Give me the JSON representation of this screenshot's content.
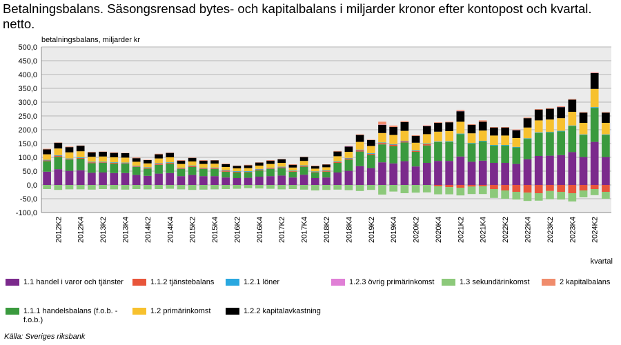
{
  "chart_data": {
    "type": "bar",
    "stacked": true,
    "title": "Betalningsbalans. Säsongsrensad bytes- och kapitalbalans i miljarder kronor efter kontopost och kvartal. netto.",
    "y_label": "betalningsbalans, miljarder kr",
    "x_label": "kvartal",
    "source": "Källa: Sveriges riksbank",
    "ylim": [
      -100,
      500
    ],
    "yticks": [
      {
        "value": -100,
        "label": "-100,0"
      },
      {
        "value": -50,
        "label": "-50,0"
      },
      {
        "value": 0,
        "label": "0,0"
      },
      {
        "value": 50,
        "label": "50,0"
      },
      {
        "value": 100,
        "label": "100,0"
      },
      {
        "value": 150,
        "label": "150,0"
      },
      {
        "value": 200,
        "label": "200,0"
      },
      {
        "value": 250,
        "label": "250,0"
      },
      {
        "value": 300,
        "label": "300,0"
      },
      {
        "value": 350,
        "label": "350,0"
      },
      {
        "value": 400,
        "label": "400,0"
      },
      {
        "value": 450,
        "label": "450,0"
      },
      {
        "value": 500,
        "label": "500,0"
      }
    ],
    "grid": true,
    "background": "#ebebeb",
    "categories": [
      null,
      "2012K2",
      null,
      "2012K4",
      null,
      "2013K2",
      null,
      "2013K4",
      null,
      "2014K2",
      null,
      "2014K4",
      null,
      "2015K2",
      null,
      "2015K4",
      null,
      "2016K2",
      null,
      "2016K4",
      null,
      "2017K2",
      null,
      "2017K4",
      null,
      "2018K2",
      null,
      "2018K4",
      null,
      "2019K2",
      null,
      "2019K4",
      null,
      "2020K2",
      null,
      "2020K4",
      null,
      "2021K2",
      null,
      "2021K4",
      null,
      "2022K2",
      null,
      "2022K4",
      null,
      "2023K2",
      null,
      "2023K4",
      null,
      "2024K2",
      null
    ],
    "series": [
      {
        "name": "1.1 handel i varor och tjänster",
        "color": "#7b2a8c",
        "values": [
          48,
          57,
          51,
          53,
          44,
          45,
          43,
          43,
          36,
          33,
          41,
          43,
          32,
          36,
          32,
          32,
          27,
          25,
          26,
          30,
          32,
          34,
          27,
          37,
          25,
          27,
          45,
          51,
          68,
          61,
          82,
          78,
          86,
          67,
          80,
          87,
          87,
          103,
          84,
          88,
          80,
          80,
          76,
          93,
          105,
          106,
          108,
          119,
          101,
          156,
          101
        ]
      },
      {
        "name": "1.1.2 tjänstebalans",
        "color": "#e8553a",
        "values": [
          3,
          4,
          2,
          3,
          3,
          2,
          3,
          2,
          2,
          3,
          4,
          3,
          2,
          3,
          2,
          3,
          4,
          3,
          2,
          3,
          2,
          3,
          2,
          3,
          2,
          3,
          3,
          4,
          5,
          4,
          5,
          6,
          4,
          3,
          5,
          -5,
          -8,
          -10,
          -6,
          -5,
          -15,
          -20,
          -25,
          -28,
          -30,
          -22,
          -25,
          -30,
          -20,
          -15,
          -25
        ]
      },
      {
        "name": "1.2.1 löner",
        "color": "#29a8e0",
        "values": [
          2,
          2,
          2,
          2,
          2,
          2,
          2,
          2,
          2,
          2,
          2,
          2,
          2,
          2,
          2,
          2,
          2,
          2,
          2,
          2,
          2,
          2,
          2,
          2,
          2,
          2,
          2,
          2,
          2,
          2,
          2,
          2,
          2,
          2,
          2,
          2,
          2,
          2,
          2,
          2,
          2,
          2,
          2,
          2,
          2,
          2,
          2,
          2,
          2,
          3,
          2
        ]
      },
      {
        "name": "1.2.3 övrig primärinkomst",
        "color": "#e07fd6",
        "values": [
          0,
          0,
          0,
          0,
          0,
          0,
          0,
          0,
          0,
          0,
          0,
          0,
          0,
          0,
          0,
          0,
          0,
          0,
          0,
          0,
          0,
          0,
          0,
          0,
          0,
          0,
          0,
          1,
          0,
          0,
          1,
          0,
          0,
          0,
          1,
          0,
          0,
          1,
          0,
          0,
          0,
          0,
          1,
          0,
          0,
          0,
          1,
          0,
          0,
          1,
          0
        ]
      },
      {
        "name": "1.3 sekundärinkomst",
        "color": "#8cc97a",
        "values": [
          -15,
          -18,
          -16,
          -16,
          -17,
          -15,
          -16,
          -17,
          -15,
          -16,
          -15,
          -14,
          -16,
          -18,
          -17,
          -16,
          -15,
          -14,
          -12,
          -13,
          -14,
          -16,
          -15,
          -17,
          -20,
          -18,
          -17,
          -19,
          -22,
          -18,
          -35,
          -24,
          -30,
          -28,
          -27,
          -29,
          -26,
          -28,
          -27,
          -28,
          -32,
          -30,
          -28,
          -30,
          -27,
          -30,
          -28,
          -30,
          -25,
          -22,
          -25
        ]
      },
      {
        "name": "2 kapitalbalans",
        "color": "#f08c6c",
        "values": [
          2,
          1,
          2,
          1,
          2,
          1,
          2,
          1,
          2,
          1,
          2,
          1,
          2,
          1,
          2,
          1,
          2,
          1,
          2,
          1,
          2,
          1,
          2,
          1,
          2,
          1,
          2,
          1,
          2,
          1,
          10,
          5,
          3,
          2,
          2,
          2,
          2,
          3,
          2,
          5,
          2,
          2,
          2,
          2,
          2,
          2,
          2,
          2,
          2,
          2,
          2
        ]
      },
      {
        "name": "1.1.1 handelsbalans (f.o.b. - f.o.b.)",
        "color": "#3a9a3e",
        "values": [
          38,
          45,
          41,
          42,
          35,
          35,
          34,
          34,
          29,
          26,
          32,
          34,
          26,
          29,
          26,
          26,
          21,
          20,
          20,
          23,
          26,
          27,
          21,
          29,
          20,
          21,
          35,
          41,
          53,
          48,
          65,
          62,
          68,
          53,
          63,
          68,
          69,
          81,
          66,
          70,
          63,
          63,
          60,
          74,
          83,
          84,
          86,
          94,
          80,
          123,
          80
        ]
      },
      {
        "name": "1.2 primärinkomst",
        "color": "#f7c12e",
        "values": [
          20,
          24,
          22,
          22,
          18,
          19,
          18,
          18,
          15,
          14,
          17,
          18,
          14,
          15,
          14,
          14,
          11,
          10,
          11,
          12,
          14,
          14,
          11,
          16,
          10,
          11,
          19,
          22,
          28,
          26,
          34,
          33,
          36,
          28,
          34,
          36,
          37,
          43,
          35,
          37,
          34,
          34,
          32,
          39,
          44,
          45,
          46,
          50,
          42,
          66,
          42
        ]
      },
      {
        "name": "1.2.2 kapitalavkastning",
        "color": "#000000",
        "values": [
          18,
          21,
          19,
          20,
          16,
          17,
          16,
          16,
          13,
          12,
          15,
          16,
          12,
          13,
          12,
          12,
          10,
          9,
          10,
          11,
          12,
          13,
          10,
          14,
          9,
          10,
          17,
          19,
          25,
          22,
          30,
          29,
          32,
          25,
          29,
          32,
          32,
          38,
          31,
          32,
          29,
          29,
          28,
          34,
          39,
          39,
          40,
          44,
          37,
          57,
          37
        ]
      }
    ]
  }
}
